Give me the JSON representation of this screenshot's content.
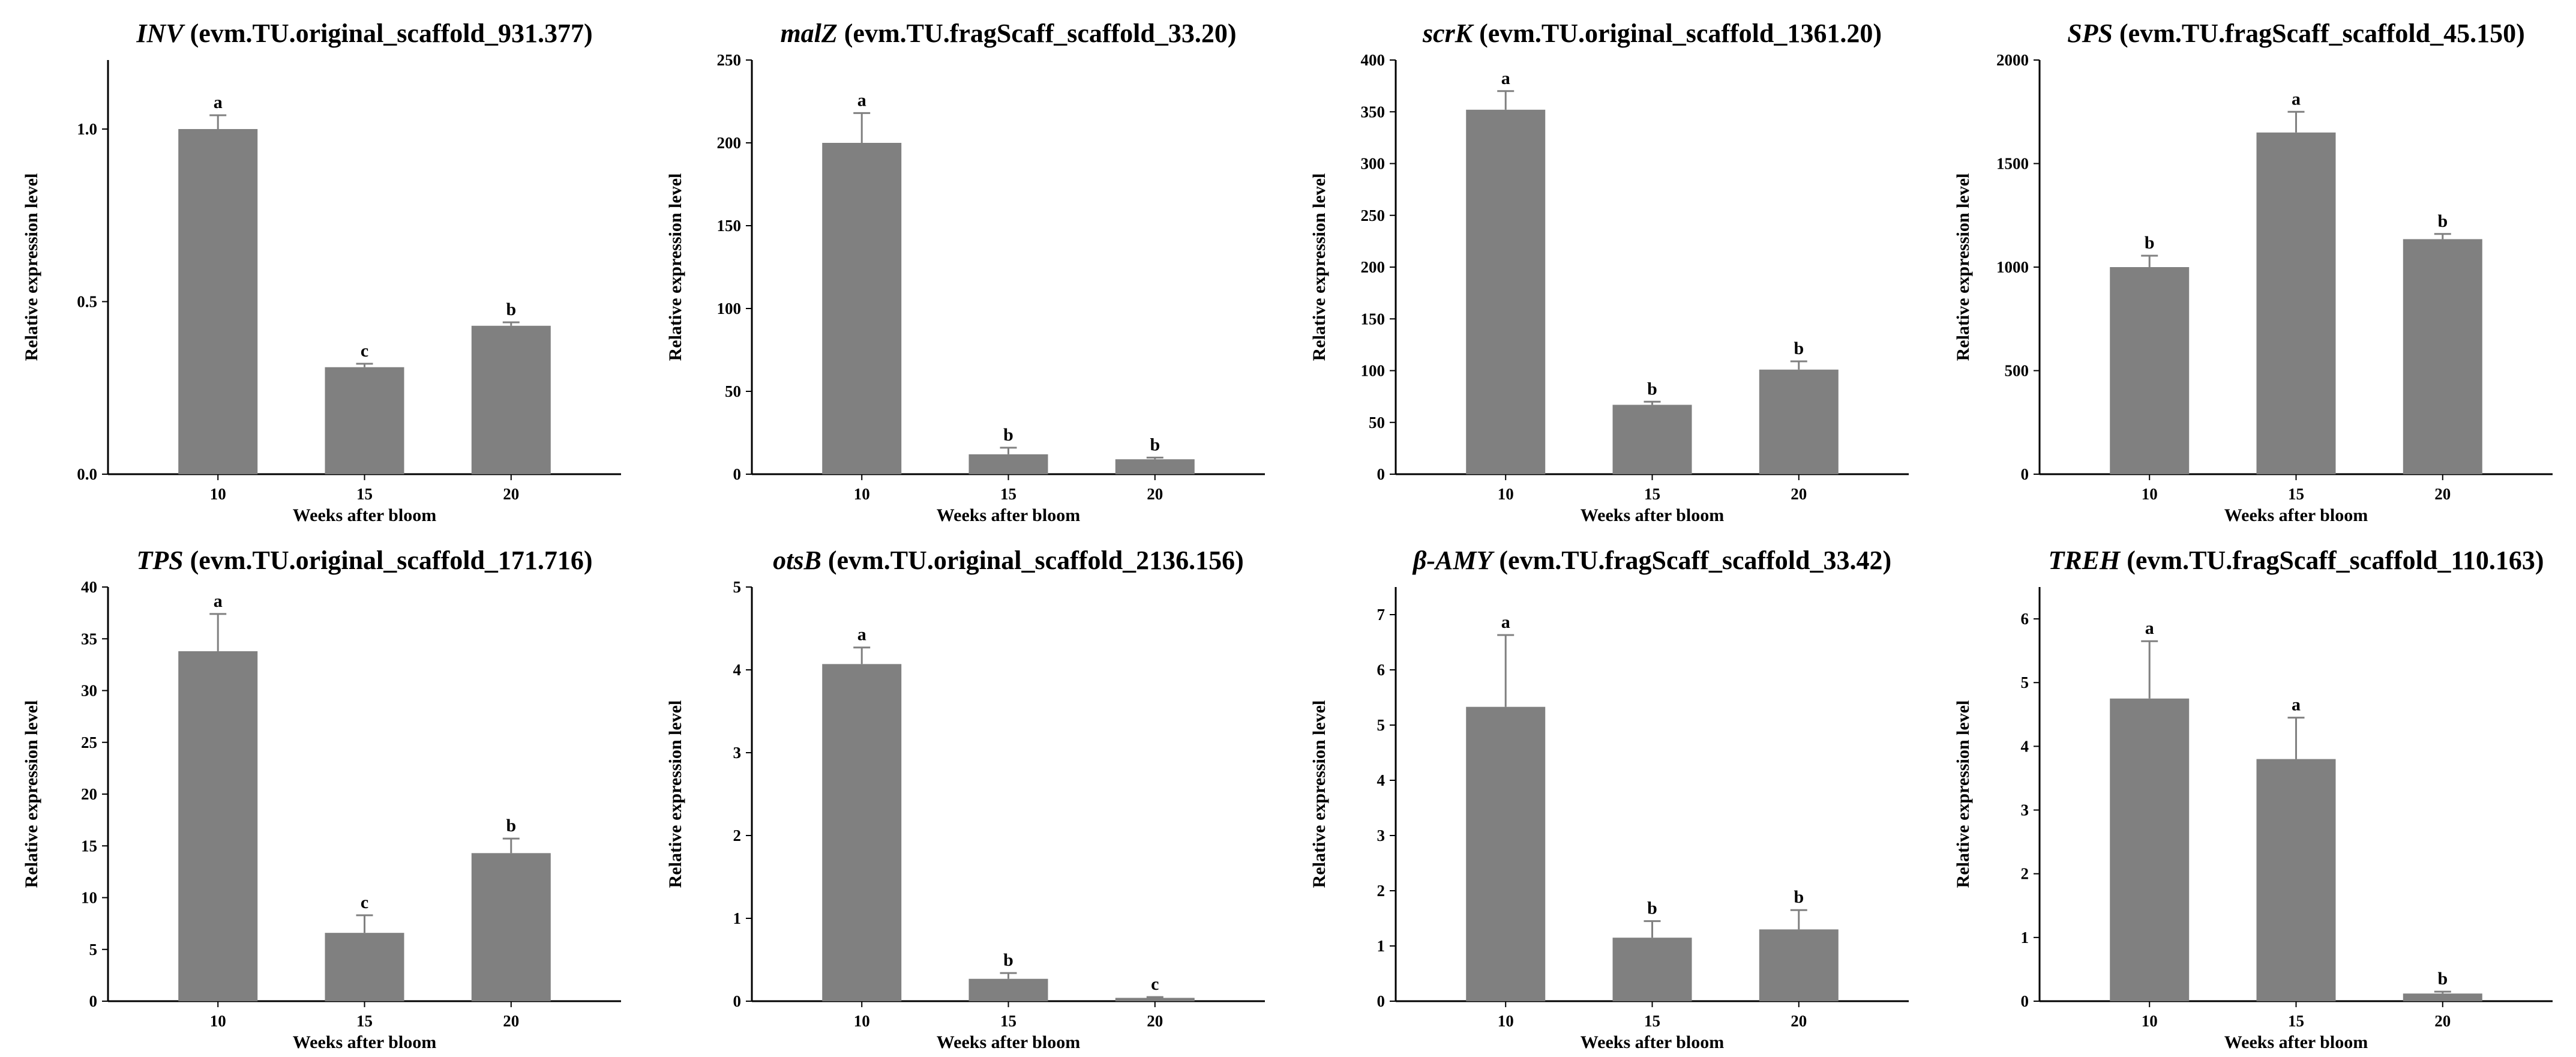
{
  "figure": {
    "style": {
      "bar_color": "#808080",
      "axis_color": "#000000",
      "text_color": "#000000"
    }
  },
  "chart_data": [
    {
      "type": "bar",
      "gene": "INV",
      "title_rest": " (evm.TU.original_scaffold_931.377)",
      "categories": [
        "10",
        "15",
        "20"
      ],
      "values": [
        1.0,
        0.31,
        0.43
      ],
      "errors": [
        0.04,
        0.01,
        0.01
      ],
      "significance": [
        "a",
        "c",
        "b"
      ],
      "xlabel": "Weeks after bloom",
      "ylabel": "Relative expression level",
      "ylim": [
        0,
        1.2
      ],
      "yticks": [
        0.0,
        0.5,
        1.0
      ],
      "ytick_labels": [
        "0.0",
        "0.5",
        "1.0"
      ]
    },
    {
      "type": "bar",
      "gene": "malZ",
      "title_rest": " (evm.TU.fragScaff_scaffold_33.20)",
      "categories": [
        "10",
        "15",
        "20"
      ],
      "values": [
        200,
        12,
        9
      ],
      "errors": [
        18,
        4,
        1
      ],
      "significance": [
        "a",
        "b",
        "b"
      ],
      "xlabel": "Weeks after bloom",
      "ylabel": "Relative expression level",
      "ylim": [
        0,
        250
      ],
      "yticks": [
        0,
        50,
        100,
        150,
        200,
        250
      ],
      "ytick_labels": [
        "0",
        "50",
        "100",
        "150",
        "200",
        "250"
      ]
    },
    {
      "type": "bar",
      "gene": "scrK",
      "title_rest": " (evm.TU.original_scaffold_1361.20)",
      "categories": [
        "10",
        "15",
        "20"
      ],
      "values": [
        352,
        67,
        101
      ],
      "errors": [
        18,
        3,
        8
      ],
      "significance": [
        "a",
        "b",
        "b"
      ],
      "xlabel": "Weeks after bloom",
      "ylabel": "Relative expression level",
      "ylim": [
        0,
        400
      ],
      "yticks": [
        0,
        50,
        100,
        150,
        200,
        250,
        300,
        350,
        400
      ],
      "ytick_labels": [
        "0",
        "50",
        "100",
        "150",
        "200",
        "250",
        "300",
        "350",
        "400"
      ]
    },
    {
      "type": "bar",
      "gene": "SPS",
      "title_rest": " (evm.TU.fragScaff_scaffold_45.150)",
      "categories": [
        "10",
        "15",
        "20"
      ],
      "values": [
        1000,
        1650,
        1135
      ],
      "errors": [
        55,
        100,
        25
      ],
      "significance": [
        "b",
        "a",
        "b"
      ],
      "xlabel": "Weeks after bloom",
      "ylabel": "Relative expression level",
      "ylim": [
        0,
        2000
      ],
      "yticks": [
        0,
        500,
        1000,
        1500,
        2000
      ],
      "ytick_labels": [
        "0",
        "500",
        "1000",
        "1500",
        "2000"
      ]
    },
    {
      "type": "bar",
      "gene": "TPS",
      "title_rest": " (evm.TU.original_scaffold_171.716)",
      "categories": [
        "10",
        "15",
        "20"
      ],
      "values": [
        33.8,
        6.6,
        14.3
      ],
      "errors": [
        3.6,
        1.7,
        1.4
      ],
      "significance": [
        "a",
        "c",
        "b"
      ],
      "xlabel": "Weeks after bloom",
      "ylabel": "Relative expression level",
      "ylim": [
        0,
        40
      ],
      "yticks": [
        0,
        5,
        10,
        15,
        20,
        25,
        30,
        35,
        40
      ],
      "ytick_labels": [
        "0",
        "5",
        "10",
        "15",
        "20",
        "25",
        "30",
        "35",
        "40"
      ]
    },
    {
      "type": "bar",
      "gene": "otsB",
      "title_rest": " (evm.TU.original_scaffold_2136.156)",
      "categories": [
        "10",
        "15",
        "20"
      ],
      "values": [
        4.07,
        0.27,
        0.04
      ],
      "errors": [
        0.2,
        0.07,
        0.01
      ],
      "significance": [
        "a",
        "b",
        "c"
      ],
      "xlabel": "Weeks after bloom",
      "ylabel": "Relative expression level",
      "ylim": [
        0,
        5
      ],
      "yticks": [
        0,
        1,
        2,
        3,
        4,
        5
      ],
      "ytick_labels": [
        "0",
        "1",
        "2",
        "3",
        "4",
        "5"
      ]
    },
    {
      "type": "bar",
      "gene": "β-AMY",
      "title_rest": " (evm.TU.fragScaff_scaffold_33.42)",
      "categories": [
        "10",
        "15",
        "20"
      ],
      "values": [
        5.33,
        1.15,
        1.3
      ],
      "errors": [
        1.3,
        0.3,
        0.35
      ],
      "significance": [
        "a",
        "b",
        "b"
      ],
      "xlabel": "Weeks after bloom",
      "ylabel": "Relative expression level",
      "ylim": [
        0,
        7.5
      ],
      "yticks": [
        0,
        1,
        2,
        3,
        4,
        5,
        6,
        7
      ],
      "ytick_labels": [
        "0",
        "1",
        "2",
        "3",
        "4",
        "5",
        "6",
        "7"
      ]
    },
    {
      "type": "bar",
      "gene": "TREH",
      "title_rest": " (evm.TU.fragScaff_scaffold_110.163)",
      "categories": [
        "10",
        "15",
        "20"
      ],
      "values": [
        4.75,
        3.8,
        0.12
      ],
      "errors": [
        0.9,
        0.65,
        0.03
      ],
      "significance": [
        "a",
        "a",
        "b"
      ],
      "xlabel": "Weeks after bloom",
      "ylabel": "Relative expression level",
      "ylim": [
        0,
        6.5
      ],
      "yticks": [
        0,
        1,
        2,
        3,
        4,
        5,
        6
      ],
      "ytick_labels": [
        "0",
        "1",
        "2",
        "3",
        "4",
        "5",
        "6"
      ]
    }
  ]
}
